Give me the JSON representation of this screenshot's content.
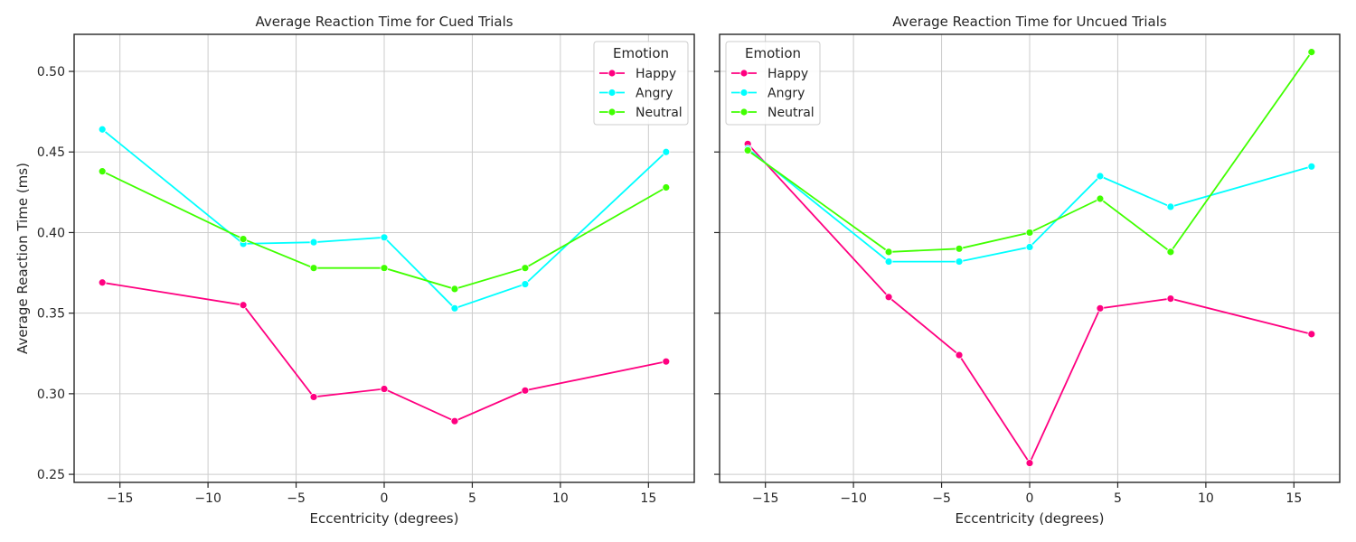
{
  "chart_data": [
    {
      "type": "line",
      "title": "Average Reaction Time for Cued Trials",
      "xlabel": "Eccentricity (degrees)",
      "ylabel": "Average Reaction Time (ms)",
      "x": [
        -16,
        -8,
        -4,
        0,
        4,
        8,
        16
      ],
      "xlim": [
        -17.6,
        17.6
      ],
      "ylim": [
        0.245,
        0.523
      ],
      "xticks": [
        "−15",
        "−10",
        "−5",
        "0",
        "5",
        "10",
        "15"
      ],
      "xtick_values": [
        -15,
        -10,
        -5,
        0,
        5,
        10,
        15
      ],
      "yticks": [
        "0.25",
        "0.30",
        "0.35",
        "0.40",
        "0.45",
        "0.50"
      ],
      "ytick_values": [
        0.25,
        0.3,
        0.35,
        0.4,
        0.45,
        0.5
      ],
      "grid": true,
      "legend": {
        "title": "Emotion",
        "placement": "top-right"
      },
      "series": [
        {
          "name": "Happy",
          "color": "#ff0080",
          "values": [
            0.369,
            0.355,
            0.298,
            0.303,
            0.283,
            0.302,
            0.32
          ]
        },
        {
          "name": "Angry",
          "color": "#00ffff",
          "values": [
            0.464,
            0.393,
            0.394,
            0.397,
            0.353,
            0.368,
            0.45
          ]
        },
        {
          "name": "Neutral",
          "color": "#40ff00",
          "values": [
            0.438,
            0.396,
            0.378,
            0.378,
            0.365,
            0.378,
            0.428
          ]
        }
      ]
    },
    {
      "type": "line",
      "title": "Average Reaction Time for Uncued Trials",
      "xlabel": "Eccentricity (degrees)",
      "ylabel": "",
      "x": [
        -16,
        -8,
        -4,
        0,
        4,
        8,
        16
      ],
      "xlim": [
        -17.6,
        17.6
      ],
      "ylim": [
        0.245,
        0.523
      ],
      "xticks": [
        "−15",
        "−10",
        "−5",
        "0",
        "5",
        "10",
        "15"
      ],
      "xtick_values": [
        -15,
        -10,
        -5,
        0,
        5,
        10,
        15
      ],
      "yticks": [
        "",
        "",
        "",
        "",
        "",
        ""
      ],
      "ytick_values": [
        0.25,
        0.3,
        0.35,
        0.4,
        0.45,
        0.5
      ],
      "grid": true,
      "legend": {
        "title": "Emotion",
        "placement": "top-left"
      },
      "series": [
        {
          "name": "Happy",
          "color": "#ff0080",
          "values": [
            0.455,
            0.36,
            0.324,
            0.257,
            0.353,
            0.359,
            0.337
          ]
        },
        {
          "name": "Angry",
          "color": "#00ffff",
          "values": [
            0.452,
            0.382,
            0.382,
            0.391,
            0.435,
            0.416,
            0.441
          ]
        },
        {
          "name": "Neutral",
          "color": "#40ff00",
          "values": [
            0.451,
            0.388,
            0.39,
            0.4,
            0.421,
            0.388,
            0.512
          ]
        }
      ]
    }
  ]
}
